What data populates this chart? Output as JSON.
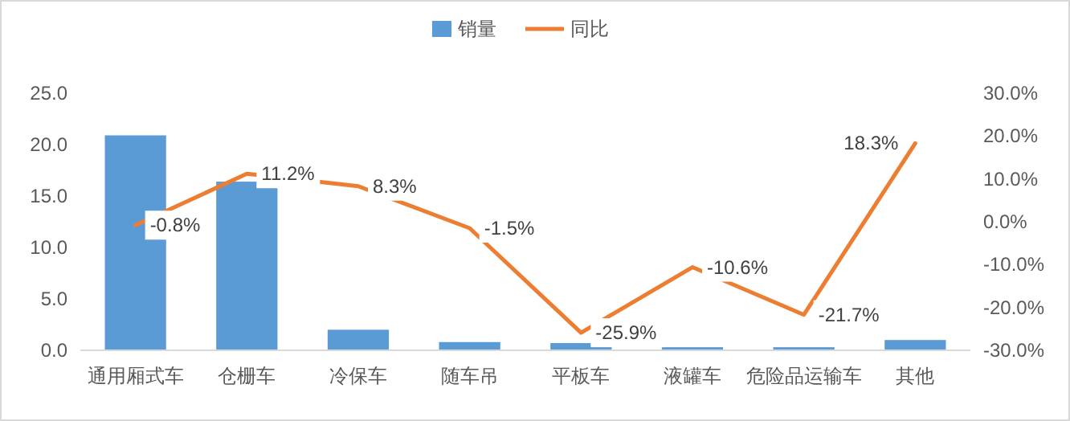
{
  "chart_data": {
    "type": "bar",
    "categories": [
      "通用厢式车",
      "仓栅车",
      "冷保车",
      "随车吊",
      "平板车",
      "液罐车",
      "危险品运输车",
      "其他"
    ],
    "series": [
      {
        "name": "销量",
        "color": "#5b9bd5",
        "values": [
          20.9,
          16.4,
          2.0,
          0.8,
          0.7,
          0.3,
          0.3,
          1.0
        ]
      },
      {
        "name": "同比",
        "type": "line",
        "axis": "y2",
        "color": "#ed7d31",
        "values": [
          -0.8,
          11.2,
          8.3,
          -1.5,
          -25.9,
          -10.6,
          -21.7,
          18.3
        ],
        "value_labels": [
          "-0.8%",
          "11.2%",
          "8.3%",
          "-1.5%",
          "-25.9%",
          "-10.6%",
          "-21.7%",
          "18.3%"
        ]
      }
    ],
    "ylim": [
      0,
      25
    ],
    "yticks": [
      {
        "value": 0,
        "label": "0.0"
      },
      {
        "value": 5,
        "label": "5.0"
      },
      {
        "value": 10,
        "label": "10.0"
      },
      {
        "value": 15,
        "label": "15.0"
      },
      {
        "value": 20,
        "label": "20.0"
      },
      {
        "value": 25,
        "label": "25.0"
      }
    ],
    "y2lim": [
      -30,
      30
    ],
    "y2ticks": [
      {
        "value": -30,
        "label": "-30.0%"
      },
      {
        "value": -20,
        "label": "-20.0%"
      },
      {
        "value": -10,
        "label": "-10.0%"
      },
      {
        "value": 0,
        "label": "0.0%"
      },
      {
        "value": 10,
        "label": "10.0%"
      },
      {
        "value": 20,
        "label": "20.0%"
      },
      {
        "value": 30,
        "label": "30.0%"
      }
    ],
    "legend": "top"
  }
}
